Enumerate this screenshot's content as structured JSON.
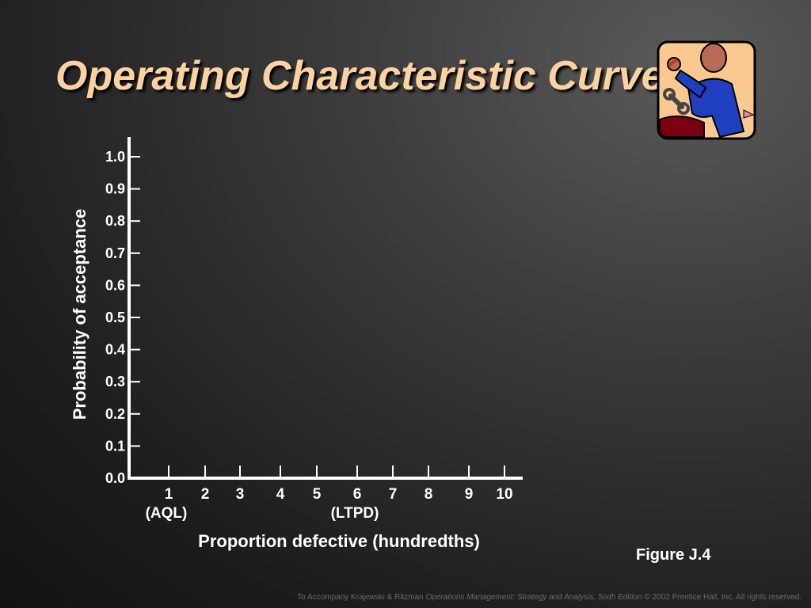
{
  "slide": {
    "title": "Operating Characteristic Curve",
    "figure_label": "Figure J.4",
    "footer": {
      "prefix": "To Accompany Krajewski & Ritzman ",
      "book_title": "Operations Management: Strategy and Analysis, Sixth Edition",
      "suffix": " © 2002 Prentice Hall, Inc. All rights reserved."
    },
    "clipart_icon": "worker-with-wrench-icon"
  },
  "colors": {
    "title": "#fbd3a0",
    "axis": "#ffffff",
    "clipart_bg": "#fbc98f",
    "clipart_shirt": "#1f3fbf",
    "clipart_skin": "#b86a55",
    "clipart_table": "#7a0010"
  },
  "chart_data": {
    "type": "line",
    "title": "",
    "xlabel": "Proportion defective (hundredths)",
    "ylabel": "Probability of acceptance",
    "x_ticks": [
      "1",
      "2",
      "3",
      "4",
      "5",
      "6",
      "7",
      "8",
      "9",
      "10"
    ],
    "x_sublabels": [
      {
        "x": "1",
        "label": "(AQL)"
      },
      {
        "x": "6",
        "label": "(LTPD)"
      }
    ],
    "y_ticks": [
      "0.0",
      "0.1",
      "0.2",
      "0.3",
      "0.4",
      "0.5",
      "0.6",
      "0.7",
      "0.8",
      "0.9",
      "1.0"
    ],
    "ylim": [
      0,
      1.0
    ],
    "series": [],
    "grid": false
  }
}
